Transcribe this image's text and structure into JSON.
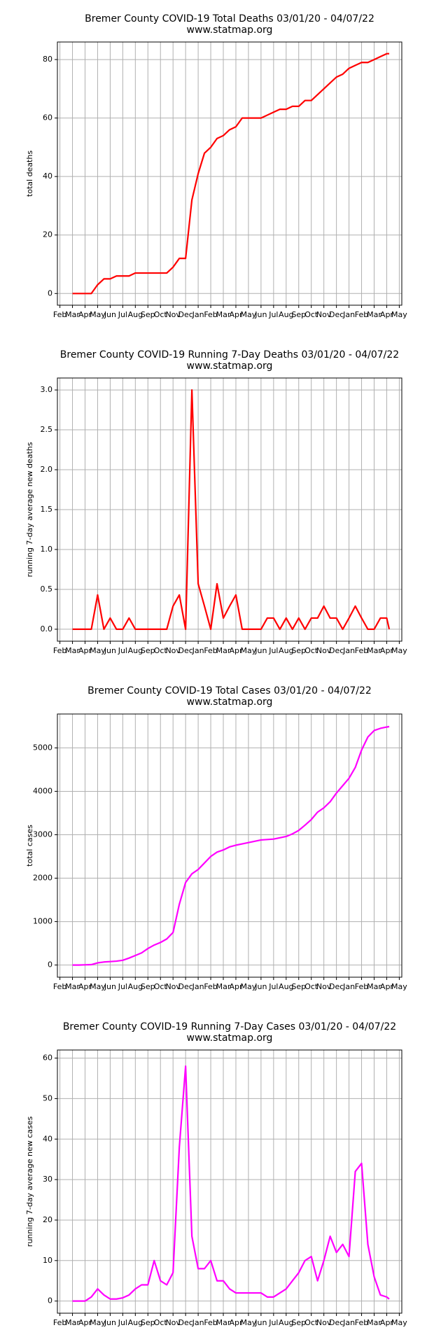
{
  "chart_data": [
    {
      "type": "line",
      "title": "Bremer County COVID-19 Total Deaths 03/01/20 - 04/07/22",
      "subtitle": "www.statmap.org",
      "ylabel": "total deaths",
      "color": "#ff0000",
      "grid": true,
      "x": [
        1,
        1.5,
        2,
        2.5,
        3,
        3.5,
        4,
        4.5,
        5,
        5.5,
        6,
        6.5,
        7,
        7.5,
        8,
        8.5,
        9,
        9.5,
        10,
        10.5,
        11,
        11.5,
        12,
        12.5,
        13,
        13.5,
        14,
        14.5,
        15,
        15.5,
        16,
        16.5,
        17,
        17.5,
        18,
        18.5,
        19,
        19.5,
        20,
        20.5,
        21,
        21.5,
        22,
        22.5,
        23,
        23.5,
        24,
        24.5,
        25,
        25.5,
        26,
        26.2
      ],
      "values": [
        0,
        0,
        0,
        0,
        3,
        5,
        5,
        6,
        6,
        6,
        7,
        7,
        7,
        7,
        7,
        7,
        9,
        12,
        12,
        32,
        41,
        48,
        50,
        53,
        54,
        56,
        57,
        60,
        60,
        60,
        60,
        61,
        62,
        63,
        63,
        64,
        64,
        66,
        66,
        68,
        70,
        72,
        74,
        75,
        77,
        78,
        79,
        79,
        80,
        81,
        82,
        82
      ],
      "xlim": [
        -0.2,
        27.2
      ],
      "ylim": [
        -4,
        86
      ],
      "yticks": [
        0,
        20,
        40,
        60,
        80
      ],
      "xticks": [
        {
          "value": 0,
          "label": "Feb"
        },
        {
          "value": 1,
          "label": "Mar"
        },
        {
          "value": 2,
          "label": "Apr"
        },
        {
          "value": 3,
          "label": "May"
        },
        {
          "value": 4,
          "label": "Jun"
        },
        {
          "value": 5,
          "label": "Jul"
        },
        {
          "value": 6,
          "label": "Aug"
        },
        {
          "value": 7,
          "label": "Sep"
        },
        {
          "value": 8,
          "label": "Oct"
        },
        {
          "value": 9,
          "label": "Nov"
        },
        {
          "value": 10,
          "label": "Dec"
        },
        {
          "value": 11,
          "label": "Jan"
        },
        {
          "value": 12,
          "label": "Feb"
        },
        {
          "value": 13,
          "label": "Mar"
        },
        {
          "value": 14,
          "label": "Apr"
        },
        {
          "value": 15,
          "label": "May"
        },
        {
          "value": 16,
          "label": "Jun"
        },
        {
          "value": 17,
          "label": "Jul"
        },
        {
          "value": 18,
          "label": "Aug"
        },
        {
          "value": 19,
          "label": "Sep"
        },
        {
          "value": 20,
          "label": "Oct"
        },
        {
          "value": 21,
          "label": "Nov"
        },
        {
          "value": 22,
          "label": "Dec"
        },
        {
          "value": 23,
          "label": "Jan"
        },
        {
          "value": 24,
          "label": "Feb"
        },
        {
          "value": 25,
          "label": "Mar"
        },
        {
          "value": 26,
          "label": "Apr"
        },
        {
          "value": 27,
          "label": "May"
        }
      ]
    },
    {
      "type": "line",
      "title": "Bremer County COVID-19 Running 7-Day Deaths 03/01/20 - 04/07/22",
      "subtitle": "www.statmap.org",
      "ylabel": "running 7-day average new deaths",
      "color": "#ff0000",
      "grid": true,
      "x": [
        1,
        1.5,
        2,
        2.5,
        3,
        3.5,
        4,
        4.5,
        5,
        5.5,
        6,
        6.5,
        7,
        7.5,
        8,
        8.5,
        9,
        9.5,
        10,
        10.5,
        11,
        11.5,
        12,
        12.5,
        13,
        13.5,
        14,
        14.5,
        15,
        15.5,
        16,
        16.5,
        17,
        17.5,
        18,
        18.5,
        19,
        19.5,
        20,
        20.5,
        21,
        21.5,
        22,
        22.5,
        23,
        23.5,
        24,
        24.5,
        25,
        25.5,
        26,
        26.2
      ],
      "values": [
        0,
        0,
        0,
        0,
        0.43,
        0,
        0.14,
        0,
        0,
        0.14,
        0,
        0,
        0,
        0,
        0,
        0,
        0.29,
        0.43,
        0,
        3.0,
        0.57,
        0.29,
        0,
        0.57,
        0.14,
        0.29,
        0.43,
        0,
        0,
        0,
        0,
        0.14,
        0.14,
        0,
        0.14,
        0,
        0.14,
        0,
        0.14,
        0.14,
        0.29,
        0.14,
        0.14,
        0,
        0.14,
        0.29,
        0.14,
        0,
        0,
        0.14,
        0.14,
        0
      ],
      "xlim": [
        -0.2,
        27.2
      ],
      "ylim": [
        -0.15,
        3.15
      ],
      "yticks": [
        {
          "value": 0,
          "label": "0.0"
        },
        {
          "value": 0.5,
          "label": "0.5"
        },
        {
          "value": 1,
          "label": "1.0"
        },
        {
          "value": 1.5,
          "label": "1.5"
        },
        {
          "value": 2,
          "label": "2.0"
        },
        {
          "value": 2.5,
          "label": "2.5"
        },
        {
          "value": 3,
          "label": "3.0"
        }
      ],
      "xticks": [
        {
          "value": 0,
          "label": "Feb"
        },
        {
          "value": 1,
          "label": "Mar"
        },
        {
          "value": 2,
          "label": "Apr"
        },
        {
          "value": 3,
          "label": "May"
        },
        {
          "value": 4,
          "label": "Jun"
        },
        {
          "value": 5,
          "label": "Jul"
        },
        {
          "value": 6,
          "label": "Aug"
        },
        {
          "value": 7,
          "label": "Sep"
        },
        {
          "value": 8,
          "label": "Oct"
        },
        {
          "value": 9,
          "label": "Nov"
        },
        {
          "value": 10,
          "label": "Dec"
        },
        {
          "value": 11,
          "label": "Jan"
        },
        {
          "value": 12,
          "label": "Feb"
        },
        {
          "value": 13,
          "label": "Mar"
        },
        {
          "value": 14,
          "label": "Apr"
        },
        {
          "value": 15,
          "label": "May"
        },
        {
          "value": 16,
          "label": "Jun"
        },
        {
          "value": 17,
          "label": "Jul"
        },
        {
          "value": 18,
          "label": "Aug"
        },
        {
          "value": 19,
          "label": "Sep"
        },
        {
          "value": 20,
          "label": "Oct"
        },
        {
          "value": 21,
          "label": "Nov"
        },
        {
          "value": 22,
          "label": "Dec"
        },
        {
          "value": 23,
          "label": "Jan"
        },
        {
          "value": 24,
          "label": "Feb"
        },
        {
          "value": 25,
          "label": "Mar"
        },
        {
          "value": 26,
          "label": "Apr"
        },
        {
          "value": 27,
          "label": "May"
        }
      ]
    },
    {
      "type": "line",
      "title": "Bremer County COVID-19 Total Cases 03/01/20 - 04/07/22",
      "subtitle": "www.statmap.org",
      "ylabel": "total cases",
      "color": "#ff00ff",
      "grid": true,
      "x": [
        1,
        1.5,
        2,
        2.5,
        3,
        3.5,
        4,
        4.5,
        5,
        5.5,
        6,
        6.5,
        7,
        7.5,
        8,
        8.5,
        9,
        9.5,
        10,
        10.5,
        11,
        11.5,
        12,
        12.5,
        13,
        13.5,
        14,
        14.5,
        15,
        15.5,
        16,
        16.5,
        17,
        17.5,
        18,
        18.5,
        19,
        19.5,
        20,
        20.5,
        21,
        21.5,
        22,
        22.5,
        23,
        23.5,
        24,
        24.5,
        25,
        25.5,
        26,
        26.2
      ],
      "values": [
        0,
        0,
        5,
        10,
        50,
        70,
        80,
        90,
        110,
        160,
        220,
        280,
        380,
        460,
        520,
        600,
        750,
        1400,
        1900,
        2100,
        2200,
        2350,
        2500,
        2600,
        2650,
        2720,
        2760,
        2790,
        2820,
        2850,
        2880,
        2890,
        2900,
        2930,
        2960,
        3020,
        3100,
        3220,
        3350,
        3520,
        3620,
        3760,
        3960,
        4130,
        4300,
        4550,
        4950,
        5250,
        5400,
        5450,
        5480,
        5490
      ],
      "xlim": [
        -0.2,
        27.2
      ],
      "ylim": [
        -280,
        5780
      ],
      "yticks": [
        0,
        1000,
        2000,
        3000,
        4000,
        5000
      ],
      "xticks": [
        {
          "value": 0,
          "label": "Feb"
        },
        {
          "value": 1,
          "label": "Mar"
        },
        {
          "value": 2,
          "label": "Apr"
        },
        {
          "value": 3,
          "label": "May"
        },
        {
          "value": 4,
          "label": "Jun"
        },
        {
          "value": 5,
          "label": "Jul"
        },
        {
          "value": 6,
          "label": "Aug"
        },
        {
          "value": 7,
          "label": "Sep"
        },
        {
          "value": 8,
          "label": "Oct"
        },
        {
          "value": 9,
          "label": "Nov"
        },
        {
          "value": 10,
          "label": "Dec"
        },
        {
          "value": 11,
          "label": "Jan"
        },
        {
          "value": 12,
          "label": "Feb"
        },
        {
          "value": 13,
          "label": "Mar"
        },
        {
          "value": 14,
          "label": "Apr"
        },
        {
          "value": 15,
          "label": "May"
        },
        {
          "value": 16,
          "label": "Jun"
        },
        {
          "value": 17,
          "label": "Jul"
        },
        {
          "value": 18,
          "label": "Aug"
        },
        {
          "value": 19,
          "label": "Sep"
        },
        {
          "value": 20,
          "label": "Oct"
        },
        {
          "value": 21,
          "label": "Nov"
        },
        {
          "value": 22,
          "label": "Dec"
        },
        {
          "value": 23,
          "label": "Jan"
        },
        {
          "value": 24,
          "label": "Feb"
        },
        {
          "value": 25,
          "label": "Mar"
        },
        {
          "value": 26,
          "label": "Apr"
        },
        {
          "value": 27,
          "label": "May"
        }
      ]
    },
    {
      "type": "line",
      "title": "Bremer County COVID-19 Running 7-Day Cases 03/01/20 - 04/07/22",
      "subtitle": "www.statmap.org",
      "ylabel": "running 7-day average new cases",
      "color": "#ff00ff",
      "grid": true,
      "x": [
        1,
        1.5,
        2,
        2.5,
        3,
        3.5,
        4,
        4.5,
        5,
        5.5,
        6,
        6.5,
        7,
        7.5,
        8,
        8.5,
        9,
        9.5,
        10,
        10.5,
        11,
        11.5,
        12,
        12.5,
        13,
        13.5,
        14,
        14.5,
        15,
        15.5,
        16,
        16.5,
        17,
        17.5,
        18,
        18.5,
        19,
        19.5,
        20,
        20.5,
        21,
        21.5,
        22,
        22.5,
        23,
        23.5,
        24,
        24.5,
        25,
        25.5,
        26,
        26.2
      ],
      "values": [
        0,
        0,
        0,
        1,
        3,
        1.5,
        0.5,
        0.5,
        0.8,
        1.5,
        3,
        4,
        4,
        10,
        5,
        4,
        7,
        38,
        58,
        16,
        8,
        8,
        10,
        5,
        5,
        3,
        2,
        2,
        2,
        2,
        2,
        1,
        1,
        2,
        3,
        5,
        7,
        10,
        11,
        5,
        10,
        16,
        12,
        14,
        11,
        32,
        34,
        14,
        6,
        1.5,
        1,
        0.5
      ],
      "xlim": [
        -0.2,
        27.2
      ],
      "ylim": [
        -3,
        62
      ],
      "yticks": [
        0,
        10,
        20,
        30,
        40,
        50,
        60
      ],
      "xticks": [
        {
          "value": 0,
          "label": "Feb"
        },
        {
          "value": 1,
          "label": "Mar"
        },
        {
          "value": 2,
          "label": "Apr"
        },
        {
          "value": 3,
          "label": "May"
        },
        {
          "value": 4,
          "label": "Jun"
        },
        {
          "value": 5,
          "label": "Jul"
        },
        {
          "value": 6,
          "label": "Aug"
        },
        {
          "value": 7,
          "label": "Sep"
        },
        {
          "value": 8,
          "label": "Oct"
        },
        {
          "value": 9,
          "label": "Nov"
        },
        {
          "value": 10,
          "label": "Dec"
        },
        {
          "value": 11,
          "label": "Jan"
        },
        {
          "value": 12,
          "label": "Feb"
        },
        {
          "value": 13,
          "label": "Mar"
        },
        {
          "value": 14,
          "label": "Apr"
        },
        {
          "value": 15,
          "label": "May"
        },
        {
          "value": 16,
          "label": "Jun"
        },
        {
          "value": 17,
          "label": "Jul"
        },
        {
          "value": 18,
          "label": "Aug"
        },
        {
          "value": 19,
          "label": "Sep"
        },
        {
          "value": 20,
          "label": "Oct"
        },
        {
          "value": 21,
          "label": "Nov"
        },
        {
          "value": 22,
          "label": "Dec"
        },
        {
          "value": 23,
          "label": "Jan"
        },
        {
          "value": 24,
          "label": "Feb"
        },
        {
          "value": 25,
          "label": "Mar"
        },
        {
          "value": 26,
          "label": "Apr"
        },
        {
          "value": 27,
          "label": "May"
        }
      ]
    }
  ]
}
